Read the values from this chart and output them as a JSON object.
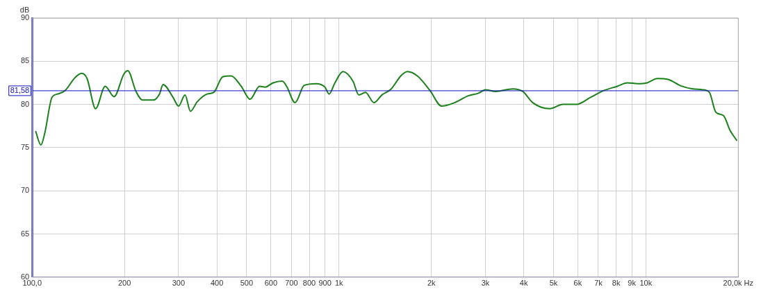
{
  "chart_data": {
    "type": "line",
    "ylabel": "dB",
    "x": [
      102.6,
      106.8,
      110,
      116,
      121,
      128,
      138,
      145,
      151,
      161,
      173,
      185,
      199,
      205,
      218,
      229,
      248,
      260,
      267,
      288,
      300,
      315,
      328,
      345,
      372,
      391,
      418,
      445,
      480,
      513,
      551,
      574,
      610,
      653,
      675,
      719,
      770,
      842,
      900,
      928,
      970,
      1030,
      1110,
      1160,
      1220,
      1300,
      1380,
      1480,
      1590,
      1670,
      1800,
      1980,
      2160,
      2380,
      2640,
      2850,
      3000,
      3240,
      3680,
      3970,
      4280,
      4860,
      5370,
      5950,
      6590,
      7290,
      8070,
      8700,
      9400,
      10100,
      10900,
      11800,
      13100,
      14200,
      15300,
      16100,
      16900,
      17900,
      18800,
      19800
    ],
    "series": [
      {
        "color": "#1a801a",
        "values": [
          76.9,
          75.3,
          76.7,
          80.8,
          81.2,
          81.6,
          83.1,
          83.6,
          83.0,
          79.5,
          82.1,
          80.9,
          83.5,
          83.9,
          81.5,
          80.5,
          80.5,
          81.2,
          82.3,
          80.8,
          79.8,
          81.1,
          79.2,
          80.3,
          81.2,
          81.4,
          83.2,
          83.3,
          82.1,
          80.6,
          82.1,
          82.0,
          82.5,
          82.7,
          82.1,
          80.2,
          82.2,
          82.4,
          82.0,
          81.2,
          82.5,
          83.8,
          82.7,
          81.1,
          81.4,
          80.2,
          81.1,
          81.8,
          83.3,
          83.8,
          83.3,
          81.6,
          79.8,
          80.2,
          81.0,
          81.3,
          81.7,
          81.5,
          81.8,
          81.5,
          80.2,
          79.5,
          80.0,
          80.0,
          80.8,
          81.6,
          82.1,
          82.5,
          82.4,
          82.5,
          83.0,
          82.9,
          82.1,
          81.8,
          81.7,
          81.4,
          79.1,
          78.7,
          77.0,
          75.8
        ]
      }
    ],
    "log": "x",
    "xlim": [
      100,
      20000
    ],
    "xticks": [
      {
        "value": 100,
        "label": "100,0"
      },
      200,
      300,
      400,
      500,
      600,
      700,
      800,
      900,
      {
        "value": 1000,
        "label": "1k"
      },
      {
        "value": 2000,
        "label": "2k"
      },
      {
        "value": 3000,
        "label": "3k"
      },
      {
        "value": 4000,
        "label": "4k"
      },
      {
        "value": 5000,
        "label": "5k"
      },
      {
        "value": 6000,
        "label": "6k"
      },
      {
        "value": 7000,
        "label": "7k"
      },
      {
        "value": 8000,
        "label": "8k"
      },
      {
        "value": 9000,
        "label": "9k"
      },
      {
        "value": 10000,
        "label": "10k"
      },
      {
        "value": 20000,
        "label": "20,0k Hz"
      }
    ],
    "ylim": [
      60,
      90
    ],
    "yticks": [
      60,
      65,
      70,
      75,
      80,
      85,
      90
    ],
    "grid": true,
    "legend": false,
    "marker": "none",
    "line_style": "solid",
    "ref_lines": [
      {
        "axis": "y",
        "value": 81.58,
        "label": "81,58",
        "color": "#1010c0"
      }
    ]
  }
}
